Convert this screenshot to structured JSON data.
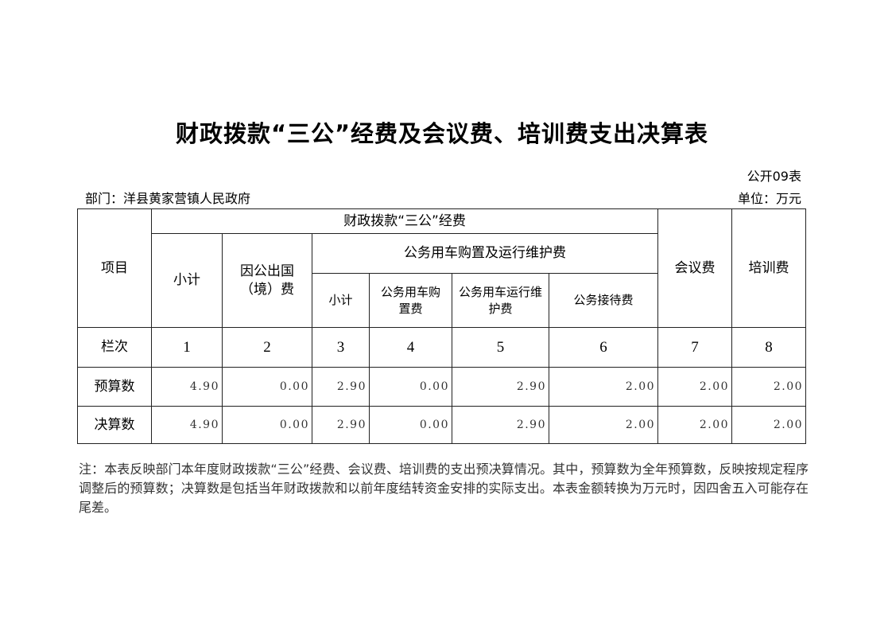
{
  "title": "财政拨款“三公”经费及会议费、培训费支出决算表",
  "form_no": "公开09表",
  "department": "部门：洋县黄家营镇人民政府",
  "unit": "单位：万元",
  "table": {
    "item_header": "项目",
    "group_header": "财政拨款“三公”经费",
    "subtotal": "小计",
    "overseas": "因公出国（境）费",
    "vehicle_group": "公务用车购置及运行维护费",
    "vehicle_subtotal": "小计",
    "vehicle_purchase": "公务用车购置费",
    "vehicle_operation": "公务用车运行维护费",
    "reception": "公务接待费",
    "meeting": "会议费",
    "training": "培训费",
    "rows": [
      {
        "label": "栏次",
        "values": [
          "1",
          "2",
          "3",
          "4",
          "5",
          "6",
          "7",
          "8"
        ]
      },
      {
        "label": "预算数",
        "values": [
          "4.90",
          "0.00",
          "2.90",
          "0.00",
          "2.90",
          "2.00",
          "2.00",
          "2.00"
        ]
      },
      {
        "label": "决算数",
        "values": [
          "4.90",
          "0.00",
          "2.90",
          "0.00",
          "2.90",
          "2.00",
          "2.00",
          "2.00"
        ]
      }
    ]
  },
  "note": "注：本表反映部门本年度财政拨款“三公”经费、会议费、培训费的支出预决算情况。其中，预算数为全年预算数，反映按规定程序调整后的预算数；决算数是包括当年财政拨款和以前年度结转资金安排的实际支出。本表金额转换为万元时，因四舍五入可能存在尾差。"
}
